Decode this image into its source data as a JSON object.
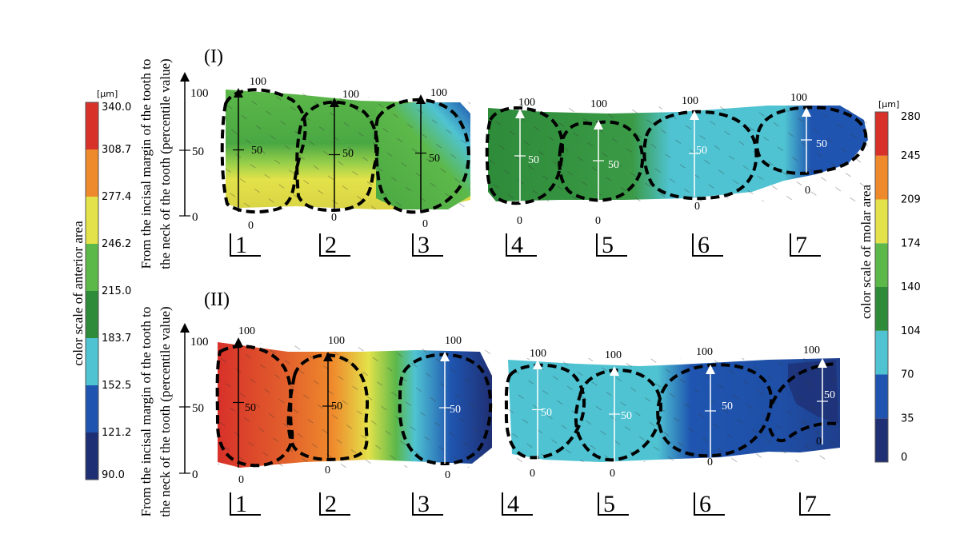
{
  "chart_data": {
    "type": "heatmap",
    "unit": "[µm]",
    "colors": [
      "#1f2f73",
      "#1f55b0",
      "#4fc3d2",
      "#2e8b3a",
      "#5cb849",
      "#e3e24a",
      "#ef8a2c",
      "#d8312a"
    ],
    "anterior_scale": {
      "label": "color scale of anterior area",
      "ticks": [
        "340.0",
        "308.7",
        "277.4",
        "246.2",
        "215.0",
        "183.7",
        "152.5",
        "121.2",
        "90.0"
      ]
    },
    "molar_scale": {
      "label": "color scale of molar area",
      "ticks": [
        "280",
        "245",
        "209",
        "174",
        "140",
        "104",
        "70",
        "35",
        "0"
      ]
    },
    "y_axis_label_line1": "From the incisal margin of the tooth to",
    "y_axis_label_line2": "the neck of the tooth (percentile value)",
    "y_ticks": [
      "100",
      "50",
      "0"
    ],
    "panels": [
      {
        "label": "(I)",
        "teeth": [
          {
            "number": "1",
            "top": "100",
            "mid": "50",
            "bottom": "0"
          },
          {
            "number": "2",
            "top": "100",
            "mid": "50",
            "bottom": "0"
          },
          {
            "number": "3",
            "top": "100",
            "mid": "50",
            "bottom": "0"
          },
          {
            "number": "4",
            "top": "100",
            "mid": "50",
            "bottom": "0"
          },
          {
            "number": "5",
            "top": "100",
            "mid": "50",
            "bottom": "0"
          },
          {
            "number": "6",
            "top": "100",
            "mid": "50",
            "bottom": "0"
          },
          {
            "number": "7",
            "top": "100",
            "mid": "50",
            "bottom": "0"
          }
        ]
      },
      {
        "label": "(II)",
        "teeth": [
          {
            "number": "1",
            "top": "100",
            "mid": "50",
            "bottom": "0"
          },
          {
            "number": "2",
            "top": "100",
            "mid": "50",
            "bottom": "0"
          },
          {
            "number": "3",
            "top": "100",
            "mid": "50",
            "bottom": "0"
          },
          {
            "number": "4",
            "top": "100",
            "mid": "50",
            "bottom": "0"
          },
          {
            "number": "5",
            "top": "100",
            "mid": "50",
            "bottom": "0"
          },
          {
            "number": "6",
            "top": "100",
            "mid": "50",
            "bottom": "0"
          },
          {
            "number": "7",
            "top": "100",
            "mid": "50",
            "bottom": "0"
          }
        ]
      }
    ]
  }
}
